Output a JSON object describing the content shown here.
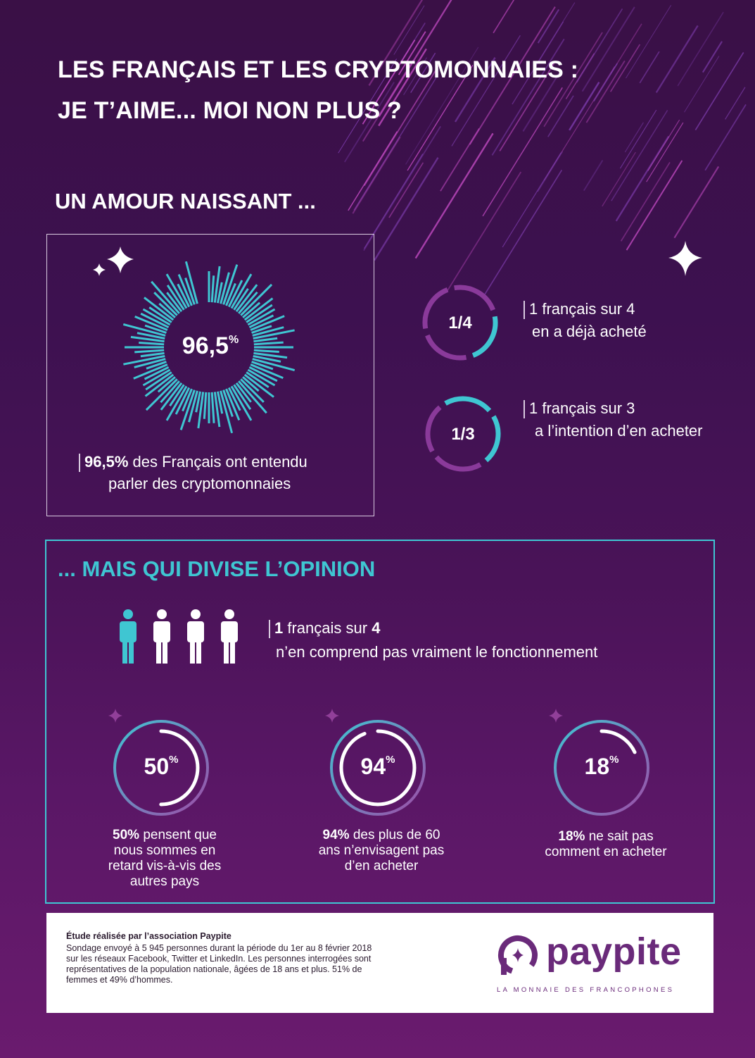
{
  "title": {
    "line1": "LES FRANÇAIS ET LES CRYPTOMONNAIES :",
    "line2": "JE T’AIME...  MOI NON PLUS ?"
  },
  "section1": {
    "heading": "UN AMOUR NAISSANT ...",
    "radial": {
      "value": "96,5",
      "unit": "%",
      "caption_bold": "96,5%",
      "caption_rest": " des Français ont entendu",
      "caption_line2": "parler des cryptomonnaies"
    },
    "stat_a": {
      "fraction": "1/4",
      "line1": "1 français sur 4",
      "line2": "en a déjà acheté",
      "fill": 0.25
    },
    "stat_b": {
      "fraction": "1/3",
      "line1": "1 français sur 3",
      "line2": "a l’intention d’en acheter",
      "fill": 0.333
    }
  },
  "section2": {
    "heading": "... MAIS QUI DIVISE L’OPINION",
    "people": {
      "bold_1": "1",
      "mid": " français sur ",
      "bold_2": "4",
      "line2": "n’en comprend pas vraiment le fonctionnement",
      "highlighted": 1,
      "total": 4
    },
    "rings": [
      {
        "value": "50",
        "unit": "%",
        "fill": 0.5,
        "bold": "50%",
        "rest": " pensent que",
        "lines": [
          "nous sommes en",
          "retard vis-à-vis des",
          "autres pays"
        ]
      },
      {
        "value": "94",
        "unit": "%",
        "fill": 0.94,
        "bold": "94%",
        "rest": " des plus de 60",
        "lines": [
          "ans n’envisagent pas",
          "d’en acheter"
        ]
      },
      {
        "value": "18",
        "unit": "%",
        "fill": 0.18,
        "bold": "18%",
        "rest": " ne sait pas",
        "lines": [
          "comment en acheter"
        ]
      }
    ]
  },
  "footer": {
    "heading": "Étude réalisée par l’association Paypite",
    "lines": [
      "Sondage envoyé à 5 945 personnes durant la période du 1er au 8 février 2018",
      "sur les réseaux Facebook, Twitter et LinkedIn. Les personnes interrogées sont",
      "représentatives de la population nationale, âgées de 18 ans et plus. 51% de",
      "femmes et 49% d’hommes."
    ],
    "logo": "paypite",
    "tagline": "LA MONNAIE DES FRANCOPHONES"
  },
  "colors": {
    "teal": "#3fc6d2",
    "purple": "#8a3a9a",
    "white": "#ffffff"
  }
}
